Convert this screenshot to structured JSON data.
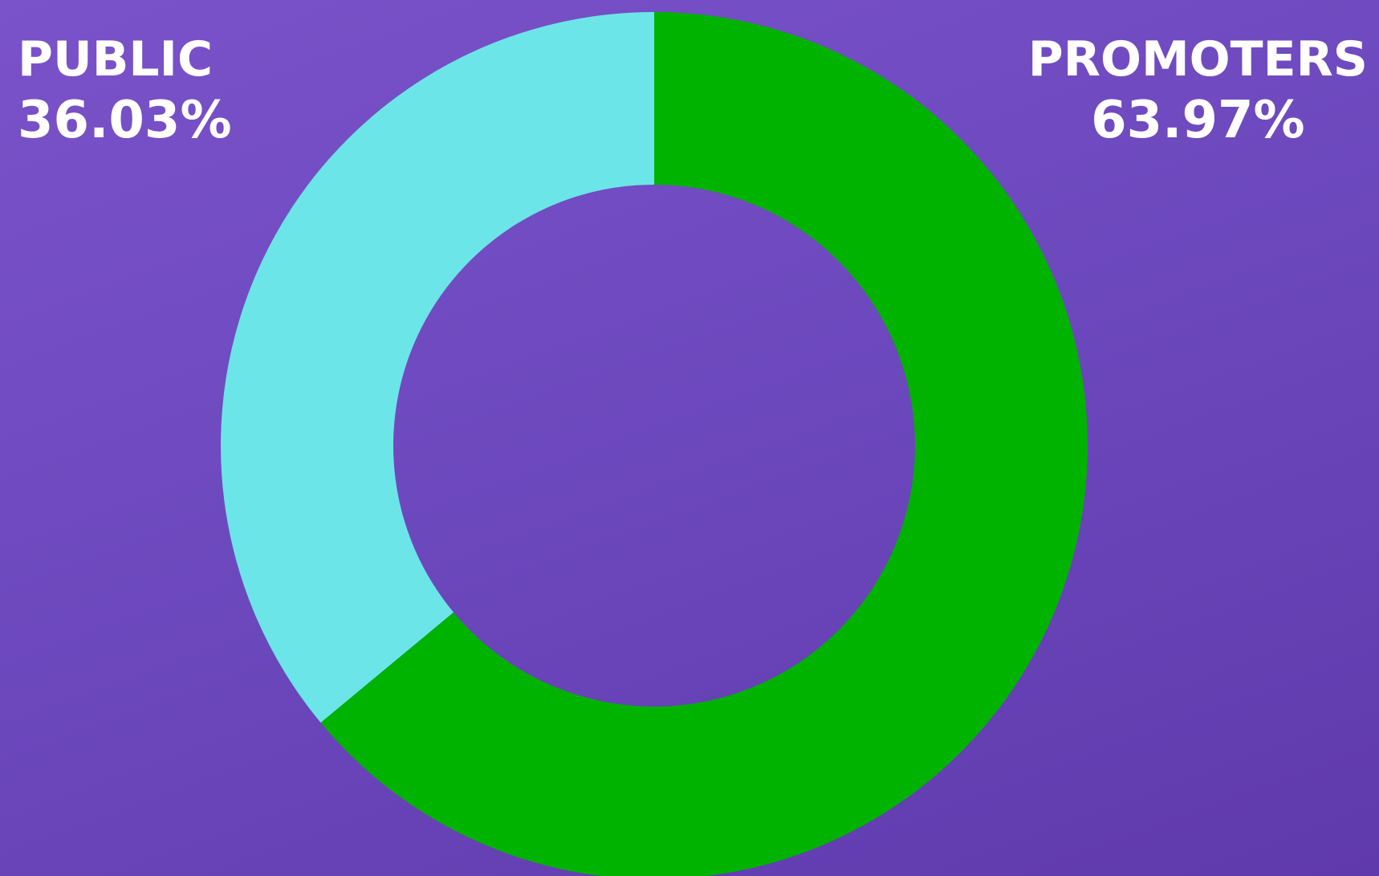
{
  "chart_data": {
    "type": "pie",
    "donut": true,
    "categories": [
      "PUBLIC",
      "PROMOTERS"
    ],
    "values": [
      36.03,
      63.97
    ],
    "labels": [
      "36.03%",
      "63.97%"
    ],
    "colors": [
      "#6ce5e8",
      "#00b300"
    ],
    "background_color": "#6f4ac0"
  }
}
